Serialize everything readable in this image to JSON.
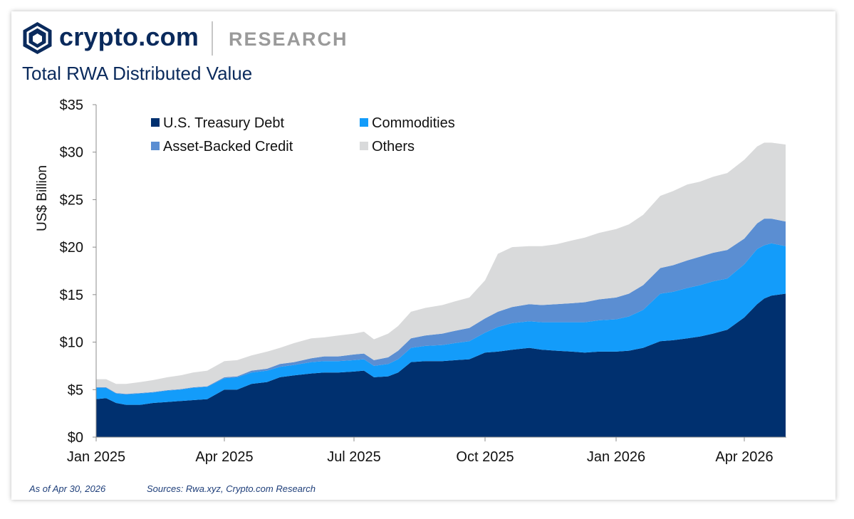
{
  "header": {
    "brand": "crypto.com",
    "section": "RESEARCH",
    "title": "Total RWA Distributed Value"
  },
  "footer": {
    "as_of": "As of Apr 30, 2026",
    "sources": "Sources: Rwa.xyz, Crypto.com Research"
  },
  "colors": {
    "treasury": "#00306f",
    "commodities": "#139cfa",
    "abc": "#5b8ed2",
    "others": "#d9dadb",
    "brand_navy": "#0a2a5c"
  },
  "chart_data": {
    "type": "area",
    "stacked": true,
    "title": "Total RWA Distributed Value",
    "ylabel": "US$ Billion",
    "xlabel": "",
    "ylim": [
      0,
      35
    ],
    "yticks": [
      "$0",
      "$5",
      "$10",
      "$15",
      "$20",
      "$25",
      "$30",
      "$35"
    ],
    "ytick_values": [
      0,
      5,
      10,
      15,
      20,
      25,
      30,
      35
    ],
    "xticks": [
      {
        "label": "Jan 2025",
        "date": "2025-01-01"
      },
      {
        "label": "Apr 2025",
        "date": "2025-04-01"
      },
      {
        "label": "Jul 2025",
        "date": "2025-07-01"
      },
      {
        "label": "Oct 2025",
        "date": "2025-10-01"
      },
      {
        "label": "Jan 2026",
        "date": "2026-01-01"
      },
      {
        "label": "Apr 2026",
        "date": "2026-04-01"
      }
    ],
    "legend_position": "top-left",
    "x": [
      "2025-01-01",
      "2025-01-08",
      "2025-01-15",
      "2025-01-22",
      "2025-02-01",
      "2025-02-10",
      "2025-02-20",
      "2025-03-01",
      "2025-03-10",
      "2025-03-20",
      "2025-04-01",
      "2025-04-10",
      "2025-04-20",
      "2025-05-01",
      "2025-05-10",
      "2025-05-20",
      "2025-06-01",
      "2025-06-10",
      "2025-06-20",
      "2025-07-01",
      "2025-07-08",
      "2025-07-15",
      "2025-07-25",
      "2025-08-01",
      "2025-08-10",
      "2025-08-20",
      "2025-09-01",
      "2025-09-10",
      "2025-09-20",
      "2025-10-01",
      "2025-10-10",
      "2025-10-20",
      "2025-11-01",
      "2025-11-10",
      "2025-11-20",
      "2025-12-01",
      "2025-12-10",
      "2025-12-20",
      "2026-01-01",
      "2026-01-10",
      "2026-01-20",
      "2026-02-01",
      "2026-02-10",
      "2026-02-20",
      "2026-03-01",
      "2026-03-10",
      "2026-03-20",
      "2026-04-01",
      "2026-04-10",
      "2026-04-15",
      "2026-04-20",
      "2026-04-30"
    ],
    "series": [
      {
        "name": "U.S. Treasury Debt",
        "color": "#00306f",
        "values": [
          4.0,
          4.1,
          3.6,
          3.4,
          3.4,
          3.6,
          3.7,
          3.8,
          3.9,
          4.0,
          5.0,
          5.0,
          5.6,
          5.8,
          6.3,
          6.5,
          6.7,
          6.8,
          6.8,
          6.9,
          7.0,
          6.3,
          6.4,
          6.8,
          7.9,
          8.0,
          8.0,
          8.1,
          8.2,
          8.9,
          9.0,
          9.2,
          9.4,
          9.2,
          9.1,
          9.0,
          8.9,
          9.0,
          9.0,
          9.1,
          9.4,
          10.1,
          10.2,
          10.4,
          10.6,
          10.9,
          11.3,
          12.6,
          14.0,
          14.6,
          14.9,
          15.1
        ]
      },
      {
        "name": "Commodities",
        "color": "#139cfa",
        "values": [
          1.2,
          1.1,
          1.0,
          1.1,
          1.2,
          1.1,
          1.2,
          1.2,
          1.3,
          1.3,
          1.2,
          1.3,
          1.2,
          1.2,
          1.1,
          1.1,
          1.2,
          1.2,
          1.2,
          1.2,
          1.2,
          1.2,
          1.3,
          1.4,
          1.5,
          1.6,
          1.7,
          1.8,
          1.9,
          2.1,
          2.6,
          2.8,
          2.8,
          2.9,
          3.0,
          3.1,
          3.2,
          3.3,
          3.4,
          3.6,
          4.0,
          5.0,
          5.1,
          5.3,
          5.4,
          5.5,
          5.4,
          5.6,
          5.8,
          5.6,
          5.5,
          5.0
        ]
      },
      {
        "name": "Asset-Backed Credit",
        "color": "#5b8ed2",
        "values": [
          0.05,
          0.05,
          0.05,
          0.05,
          0.05,
          0.05,
          0.05,
          0.05,
          0.05,
          0.05,
          0.1,
          0.1,
          0.2,
          0.2,
          0.3,
          0.3,
          0.4,
          0.5,
          0.5,
          0.6,
          0.6,
          0.6,
          0.7,
          0.9,
          1.0,
          1.1,
          1.2,
          1.3,
          1.4,
          1.5,
          1.6,
          1.7,
          1.8,
          1.8,
          1.9,
          2.0,
          2.1,
          2.2,
          2.3,
          2.4,
          2.6,
          2.7,
          2.8,
          2.9,
          3.0,
          3.0,
          3.0,
          2.7,
          2.7,
          2.8,
          2.6,
          2.6
        ]
      },
      {
        "name": "Others",
        "color": "#d9dadb",
        "values": [
          0.85,
          0.85,
          0.95,
          1.05,
          1.15,
          1.25,
          1.35,
          1.45,
          1.55,
          1.65,
          1.7,
          1.7,
          1.6,
          1.8,
          1.7,
          2.0,
          2.1,
          2.0,
          2.2,
          2.2,
          2.3,
          2.2,
          2.5,
          2.6,
          2.8,
          2.9,
          3.0,
          3.1,
          3.2,
          4.0,
          6.1,
          6.3,
          6.1,
          6.2,
          6.3,
          6.6,
          6.8,
          7.0,
          7.2,
          7.3,
          7.4,
          7.6,
          7.8,
          8.0,
          7.9,
          8.0,
          8.1,
          8.3,
          8.1,
          8.0,
          8.0,
          8.1
        ]
      }
    ]
  }
}
